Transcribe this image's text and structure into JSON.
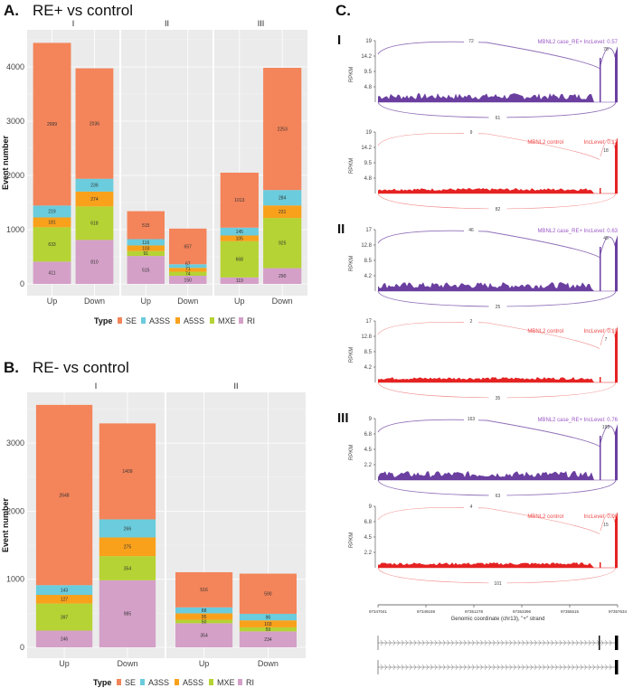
{
  "panels": {
    "a_letter": "A.",
    "a_title": "RE+ vs control",
    "b_letter": "B.",
    "b_title": "RE- vs control",
    "c_letter": "C."
  },
  "colors": {
    "SE": "#F4845A",
    "A3SS": "#6ACCDC",
    "A5SS": "#F9A11B",
    "MXE": "#B5D334",
    "RI": "#D4A0C8",
    "case": "#6A3FA0",
    "control": "#E52222",
    "case_text": "#9B59C6",
    "control_text": "#F04848"
  },
  "chart_data": [
    {
      "type": "bar",
      "stacked": true,
      "title": "RE+ vs control",
      "xlabel": "",
      "ylabel": "Event number",
      "ylim": [
        0,
        4600
      ],
      "yticks": [
        0,
        1000,
        2000,
        3000,
        4000
      ],
      "legend": {
        "title": "Type",
        "entries": [
          "SE",
          "A3SS",
          "A5SS",
          "MXE",
          "RI"
        ],
        "placement": "bottom"
      },
      "facets": [
        {
          "label": "I",
          "categories": [
            "Up",
            "Down"
          ],
          "series": [
            {
              "name": "SE",
              "values": [
                2999,
                2036
              ]
            },
            {
              "name": "A3SS",
              "values": [
                219,
                236
              ]
            },
            {
              "name": "A5SS",
              "values": [
                181,
                274
              ]
            },
            {
              "name": "MXE",
              "values": [
                633,
                618
              ]
            },
            {
              "name": "RI",
              "values": [
                411,
                810
              ]
            }
          ]
        },
        {
          "label": "II",
          "categories": [
            "Up",
            "Down"
          ],
          "series": [
            {
              "name": "SE",
              "values": [
                515,
                657
              ]
            },
            {
              "name": "A3SS",
              "values": [
                116,
                67
              ]
            },
            {
              "name": "A5SS",
              "values": [
                103,
                71
              ]
            },
            {
              "name": "MXE",
              "values": [
                91,
                74
              ]
            },
            {
              "name": "RI",
              "values": [
                515,
                150
              ]
            }
          ]
        },
        {
          "label": "III",
          "categories": [
            "Up",
            "Down"
          ],
          "series": [
            {
              "name": "SE",
              "values": [
                1013,
                2253
              ]
            },
            {
              "name": "A3SS",
              "values": [
                145,
                284
              ]
            },
            {
              "name": "A5SS",
              "values": [
                105,
                231
              ]
            },
            {
              "name": "MXE",
              "values": [
                668,
                925
              ]
            },
            {
              "name": "RI",
              "values": [
                119,
                290
              ]
            }
          ]
        }
      ]
    },
    {
      "type": "bar",
      "stacked": true,
      "title": "RE- vs control",
      "xlabel": "",
      "ylabel": "Event number",
      "ylim": [
        0,
        3700
      ],
      "yticks": [
        0,
        1000,
        2000,
        3000
      ],
      "legend": {
        "title": "Type",
        "entries": [
          "SE",
          "A3SS",
          "A5SS",
          "MXE",
          "RI"
        ],
        "placement": "bottom"
      },
      "facets": [
        {
          "label": "I",
          "categories": [
            "Up",
            "Down"
          ],
          "series": [
            {
              "name": "SE",
              "values": [
                2648,
                1409
              ]
            },
            {
              "name": "A3SS",
              "values": [
                143,
                266
              ]
            },
            {
              "name": "A5SS",
              "values": [
                127,
                275
              ]
            },
            {
              "name": "MXE",
              "values": [
                397,
                354
              ]
            },
            {
              "name": "RI",
              "values": [
                246,
                985
              ]
            }
          ]
        },
        {
          "label": "II",
          "categories": [
            "Up",
            "Down"
          ],
          "series": [
            {
              "name": "SE",
              "values": [
                516,
                590
              ]
            },
            {
              "name": "A3SS",
              "values": [
                88,
                96
              ]
            },
            {
              "name": "A5SS",
              "values": [
                95,
                103
              ]
            },
            {
              "name": "MXE",
              "values": [
                50,
                59
              ]
            },
            {
              "name": "RI",
              "values": [
                354,
                234
              ]
            }
          ]
        }
      ]
    },
    {
      "type": "area",
      "subtype": "sashimi",
      "ylabel": "RPKM",
      "xlabel": "Genomic coordinate (chr13), \"+\" strand",
      "xticks": [
        "97347041",
        "97349159",
        "97351278",
        "97353396",
        "97355515",
        "97357634"
      ],
      "groups": [
        {
          "label": "I",
          "tracks": [
            {
              "sample": "MBNL2 case_RE+",
              "inclevel": "IncLevel: 0.57",
              "kind": "case",
              "yticks": [
                "19",
                "14.2",
                "9.5",
                "4.8"
              ],
              "ymax": 19,
              "junctions": {
                "skip_top": "72",
                "inclusion": "78",
                "bottom": "61"
              }
            },
            {
              "sample": "MBNL2 control",
              "inclevel": "IncLevel: 0.12",
              "kind": "control",
              "yticks": [
                "19",
                "14.2",
                "9.5",
                "4.8"
              ],
              "ymax": 19,
              "junctions": {
                "skip_top": "9",
                "inclusion": "18",
                "bottom": "82"
              }
            }
          ]
        },
        {
          "label": "II",
          "tracks": [
            {
              "sample": "MBNL2 case_RE+",
              "inclevel": "IncLevel: 0.63",
              "kind": "case",
              "yticks": [
                "17",
                "12.8",
                "8.5",
                "4.2"
              ],
              "ymax": 17,
              "junctions": {
                "skip_top": "46",
                "inclusion": "45",
                "bottom": "25"
              }
            },
            {
              "sample": "MBNL2 control",
              "inclevel": "IncLevel: 0.10",
              "kind": "control",
              "yticks": [
                "17",
                "12.8",
                "8.5",
                "4.2"
              ],
              "ymax": 17,
              "junctions": {
                "skip_top": "2",
                "inclusion": "7",
                "bottom": "35"
              }
            }
          ]
        },
        {
          "label": "III",
          "tracks": [
            {
              "sample": "MBNL2 case_RE+",
              "inclevel": "IncLevel: 0.76",
              "kind": "case",
              "yticks": [
                "9",
                "6.8",
                "4.5",
                "2.2"
              ],
              "ymax": 9,
              "junctions": {
                "skip_top": "163",
                "inclusion": "193",
                "bottom": "63"
              }
            },
            {
              "sample": "MBNL2 control",
              "inclevel": "IncLevel: 0.08",
              "kind": "control",
              "yticks": [
                "9",
                "6.8",
                "4.5",
                "2.2"
              ],
              "ymax": 9,
              "junctions": {
                "skip_top": "4",
                "inclusion": "15",
                "bottom": "101"
              }
            }
          ]
        }
      ]
    }
  ]
}
